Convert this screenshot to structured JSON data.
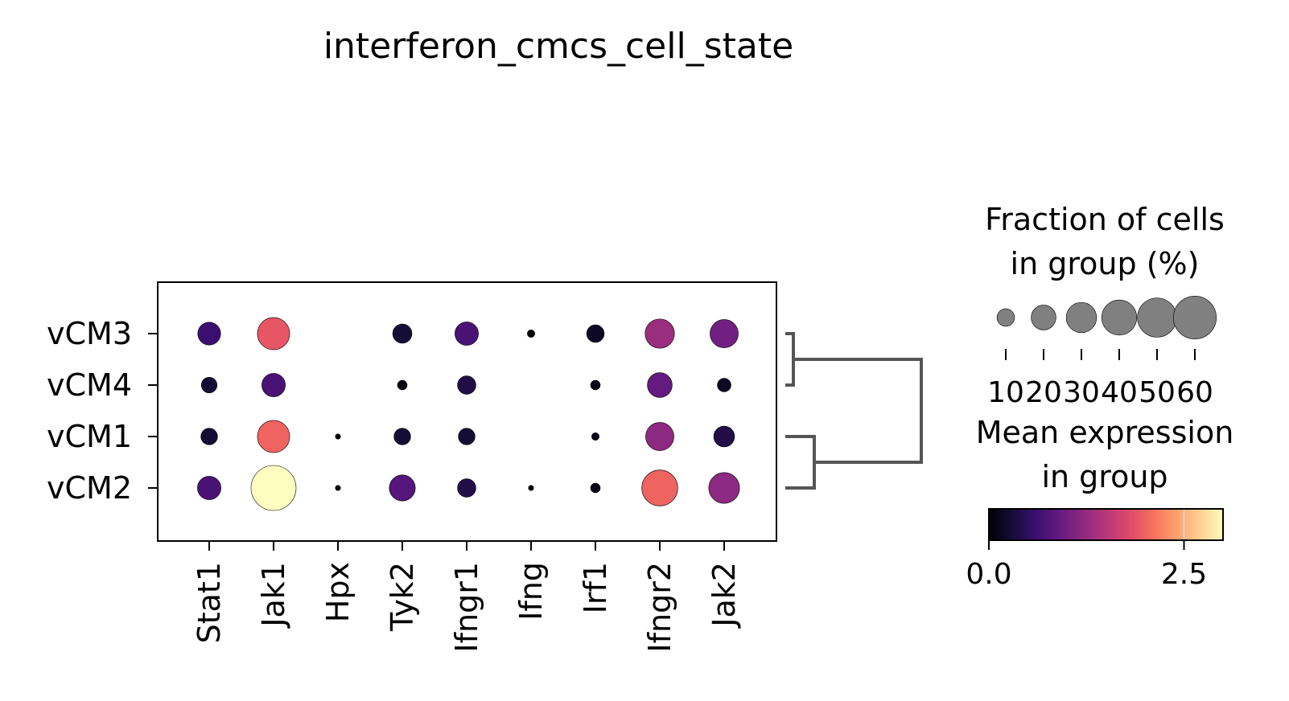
{
  "chart_data": {
    "type": "dotplot",
    "title": "interferon_cmcs_cell_state",
    "genes": [
      "Stat1",
      "Jak1",
      "Hpx",
      "Tyk2",
      "Ifngr1",
      "Ifng",
      "Irf1",
      "Ifngr2",
      "Jak2"
    ],
    "groups": [
      "vCM3",
      "vCM4",
      "vCM1",
      "vCM2"
    ],
    "fraction_pct": [
      [
        17,
        34,
        0,
        12,
        18,
        2,
        10,
        28,
        26
      ],
      [
        8,
        18,
        0,
        3,
        11,
        0,
        3,
        20,
        6
      ],
      [
        9,
        34,
        1,
        9,
        9,
        0,
        2,
        26,
        14
      ],
      [
        18,
        66,
        1,
        22,
        11,
        1,
        3,
        42,
        31
      ]
    ],
    "mean_expression": [
      [
        0.6,
        1.9,
        0.0,
        0.3,
        0.7,
        0.0,
        0.2,
        1.3,
        1.0
      ],
      [
        0.3,
        0.7,
        0.0,
        0.1,
        0.4,
        0.0,
        0.1,
        0.9,
        0.2
      ],
      [
        0.3,
        2.0,
        0.0,
        0.3,
        0.3,
        0.0,
        0.1,
        1.2,
        0.4
      ],
      [
        0.7,
        3.0,
        0.0,
        0.8,
        0.4,
        0.0,
        0.1,
        2.0,
        1.2
      ]
    ],
    "dendrogram": {
      "clusters": [
        [
          "vCM3",
          "vCM4"
        ],
        [
          "vCM1",
          "vCM2"
        ]
      ]
    },
    "size_legend": {
      "title_line1": "Fraction of cells",
      "title_line2": "in group (%)",
      "ticks": [
        10,
        20,
        30,
        40,
        50,
        60
      ],
      "tick_labels": [
        "10",
        "20",
        "30",
        "40",
        "50",
        "60"
      ]
    },
    "color_legend": {
      "title_line1": "Mean expression",
      "title_line2": "in group",
      "colormap": "magma",
      "vmin": 0.0,
      "vmax": 3.0,
      "tick_labels": [
        "0.0",
        "2.5"
      ]
    }
  }
}
